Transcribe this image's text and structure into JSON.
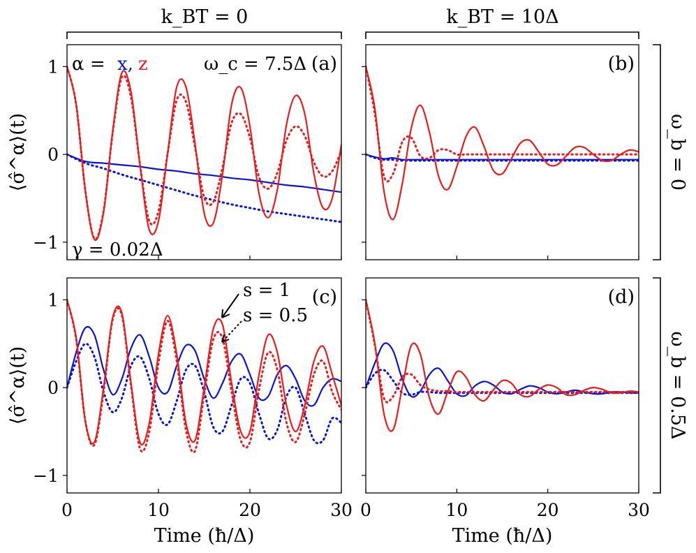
{
  "column_titles": [
    "k_BT = 0",
    "k_BT = 10Δ"
  ],
  "row_titles": [
    "ω_b = 0",
    "ω_b = 0.5Δ"
  ],
  "annotations": {
    "alpha_prefix": "α =",
    "alpha_x": "x,",
    "alpha_z": "z",
    "omega_c": "ω_c = 7.5Δ",
    "gamma": "γ = 0.02Δ",
    "s1": "s = 1",
    "s05": "s = 0.5"
  },
  "colors": {
    "x": "#0a14d8",
    "z": "#e81c1c"
  },
  "chart_data": [
    {
      "type": "line",
      "panel": "(a)",
      "ylabel": "⟨σ̂^α⟩(t)",
      "xlim": [
        0,
        30
      ],
      "ylim": [
        -1.2,
        1.25
      ],
      "xticks": [
        0,
        10,
        20,
        30
      ],
      "yticks": [
        -1,
        0,
        1
      ],
      "series": [
        {
          "component": "z",
          "style": "solid",
          "x": [
            0,
            1,
            2,
            3,
            4,
            5,
            6,
            7,
            8,
            9,
            10,
            11,
            12,
            13,
            14,
            15,
            16,
            17,
            18,
            19,
            20,
            21,
            22,
            23,
            24,
            25,
            26,
            27,
            28,
            29,
            30
          ],
          "values": [
            1.0,
            0.57,
            -0.41,
            -0.97,
            -0.66,
            0.27,
            0.93,
            0.71,
            -0.14,
            -0.86,
            -0.76,
            0.01,
            0.77,
            0.77,
            0.12,
            -0.67,
            -0.78,
            -0.23,
            0.57,
            0.76,
            0.32,
            -0.45,
            -0.72,
            -0.4,
            0.34,
            0.67,
            0.46,
            -0.22,
            -0.61,
            -0.5,
            0.11
          ]
        },
        {
          "component": "z",
          "style": "dotted",
          "x": [
            0,
            1,
            2,
            3,
            4,
            5,
            6,
            7,
            8,
            9,
            10,
            11,
            12,
            13,
            14,
            15,
            16,
            17,
            18,
            19,
            20,
            21,
            22,
            23,
            24,
            25,
            26,
            27,
            28,
            29,
            30
          ],
          "values": [
            1.0,
            0.57,
            -0.41,
            -0.96,
            -0.64,
            0.25,
            0.88,
            0.65,
            -0.13,
            -0.76,
            -0.65,
            0.01,
            0.62,
            0.6,
            0.08,
            -0.49,
            -0.54,
            -0.15,
            0.36,
            0.46,
            0.19,
            -0.26,
            -0.39,
            -0.21,
            0.16,
            0.32,
            0.21,
            -0.09,
            -0.25,
            -0.19,
            0.04
          ]
        },
        {
          "component": "x",
          "style": "solid",
          "x": [
            0,
            2,
            4,
            6,
            8,
            10,
            12,
            14,
            16,
            18,
            20,
            22,
            24,
            26,
            28,
            30
          ],
          "values": [
            0.0,
            -0.08,
            -0.1,
            -0.12,
            -0.14,
            -0.17,
            -0.19,
            -0.22,
            -0.24,
            -0.27,
            -0.29,
            -0.32,
            -0.35,
            -0.37,
            -0.4,
            -0.43
          ]
        },
        {
          "component": "x",
          "style": "dotted",
          "x": [
            0,
            2,
            4,
            6,
            8,
            10,
            12,
            14,
            16,
            18,
            20,
            22,
            24,
            26,
            28,
            30
          ],
          "values": [
            0.0,
            -0.1,
            -0.16,
            -0.23,
            -0.29,
            -0.35,
            -0.41,
            -0.47,
            -0.52,
            -0.57,
            -0.61,
            -0.65,
            -0.68,
            -0.71,
            -0.74,
            -0.77
          ]
        }
      ]
    },
    {
      "type": "line",
      "panel": "(b)",
      "xlim": [
        0,
        30
      ],
      "ylim": [
        -1.2,
        1.25
      ],
      "xticks": [
        0,
        10,
        20,
        30
      ],
      "yticks": [
        -1,
        0,
        1
      ],
      "series": [
        {
          "component": "z",
          "style": "solid",
          "x": [
            0,
            1,
            2,
            3,
            4,
            5,
            6,
            7,
            8,
            9,
            10,
            11,
            12,
            13,
            14,
            15,
            16,
            17,
            18,
            19,
            20,
            21,
            22,
            23,
            24,
            25,
            26,
            27,
            28,
            29,
            30
          ],
          "values": [
            1.0,
            0.52,
            -0.42,
            -0.74,
            -0.34,
            0.3,
            0.56,
            0.25,
            -0.25,
            -0.4,
            -0.14,
            0.2,
            0.31,
            0.09,
            -0.18,
            -0.22,
            -0.05,
            0.13,
            0.16,
            0.03,
            -0.11,
            -0.12,
            -0.02,
            0.08,
            0.08,
            0.0,
            -0.07,
            -0.07,
            0.0,
            0.05,
            0.03
          ]
        },
        {
          "component": "z",
          "style": "dotted",
          "x": [
            0,
            1,
            2,
            3,
            4,
            5,
            6,
            7,
            8,
            9,
            10,
            11,
            12,
            13,
            14,
            15,
            16,
            17,
            18,
            19,
            20,
            21,
            22,
            23,
            24,
            25,
            26,
            27,
            28,
            29,
            30
          ],
          "values": [
            1.0,
            0.46,
            -0.25,
            -0.22,
            0.14,
            0.19,
            -0.02,
            -0.04,
            0.05,
            0.05,
            0.0,
            0.0,
            0.0,
            0.0,
            0.0,
            0.0,
            0.0,
            0.0,
            0.0,
            0.0,
            0.0,
            0.0,
            0.0,
            0.0,
            0.0,
            0.0,
            0.0,
            0.0,
            0.0,
            0.0,
            0.0
          ]
        },
        {
          "component": "x",
          "style": "solid",
          "x": [
            0,
            1,
            2,
            3,
            4,
            5,
            6,
            8,
            10,
            15,
            20,
            25,
            30
          ],
          "values": [
            0.0,
            -0.03,
            -0.05,
            -0.04,
            -0.06,
            -0.06,
            -0.06,
            -0.06,
            -0.06,
            -0.06,
            -0.06,
            -0.06,
            -0.06
          ]
        },
        {
          "component": "x",
          "style": "dotted",
          "x": [
            0,
            1,
            2,
            3,
            4,
            5,
            6,
            8,
            10,
            15,
            20,
            25,
            30
          ],
          "values": [
            0.0,
            -0.04,
            -0.06,
            -0.06,
            -0.07,
            -0.07,
            -0.07,
            -0.07,
            -0.07,
            -0.07,
            -0.07,
            -0.07,
            -0.07
          ]
        }
      ]
    },
    {
      "type": "line",
      "panel": "(c)",
      "ylabel": "⟨σ̂^α⟩(t)",
      "xlabel": "Time (ħ/Δ)",
      "xlim": [
        0,
        30
      ],
      "ylim": [
        -1.2,
        1.25
      ],
      "xticks": [
        0,
        10,
        20,
        30
      ],
      "yticks": [
        -1,
        0,
        1
      ],
      "series": [
        {
          "component": "z",
          "style": "solid",
          "x": [
            0,
            1,
            2,
            3,
            4,
            5,
            6,
            7,
            8,
            9,
            10,
            11,
            12,
            13,
            14,
            15,
            16,
            17,
            18,
            19,
            20,
            21,
            22,
            23,
            24,
            25,
            26,
            27,
            28,
            29,
            30
          ],
          "values": [
            1.0,
            0.57,
            -0.38,
            -0.62,
            0.0,
            0.8,
            0.85,
            0.05,
            -0.63,
            -0.4,
            0.38,
            0.82,
            0.38,
            -0.4,
            -0.6,
            0.0,
            0.67,
            0.72,
            0.05,
            -0.5,
            -0.5,
            0.15,
            0.6,
            0.4,
            -0.2,
            -0.5,
            -0.2,
            0.3,
            0.47,
            0.15,
            -0.2
          ]
        },
        {
          "component": "z",
          "style": "dotted",
          "x": [
            0,
            1,
            2,
            3,
            4,
            5,
            6,
            7,
            8,
            9,
            10,
            11,
            12,
            13,
            14,
            15,
            16,
            17,
            18,
            19,
            20,
            21,
            22,
            23,
            24,
            25,
            26,
            27,
            28,
            29,
            30
          ],
          "values": [
            1.0,
            0.55,
            -0.38,
            -0.65,
            -0.05,
            0.78,
            0.82,
            0.02,
            -0.7,
            -0.5,
            0.28,
            0.76,
            0.3,
            -0.48,
            -0.72,
            -0.08,
            0.55,
            0.56,
            -0.05,
            -0.6,
            -0.62,
            -0.02,
            0.4,
            0.2,
            -0.4,
            -0.62,
            -0.3,
            0.15,
            0.3,
            -0.05,
            -0.25
          ]
        },
        {
          "component": "x",
          "style": "solid",
          "x": [
            0,
            1,
            2,
            3,
            4,
            5,
            6,
            7,
            8,
            9,
            10,
            11,
            12,
            13,
            14,
            15,
            16,
            17,
            18,
            19,
            20,
            21,
            22,
            23,
            24,
            25,
            26,
            27,
            28,
            29,
            30
          ],
          "values": [
            0.0,
            0.4,
            0.68,
            0.6,
            0.2,
            -0.08,
            0.1,
            0.45,
            0.6,
            0.35,
            0.0,
            -0.05,
            0.25,
            0.48,
            0.42,
            0.1,
            -0.12,
            0.05,
            0.3,
            0.38,
            0.15,
            -0.12,
            -0.1,
            0.15,
            0.25,
            0.1,
            -0.15,
            -0.2,
            0.0,
            0.1,
            0.07
          ]
        },
        {
          "component": "x",
          "style": "dotted",
          "x": [
            0,
            1,
            2,
            3,
            4,
            5,
            6,
            7,
            8,
            9,
            10,
            11,
            12,
            13,
            14,
            15,
            16,
            17,
            18,
            19,
            20,
            21,
            22,
            23,
            24,
            25,
            26,
            27,
            28,
            29,
            30
          ],
          "values": [
            0.0,
            0.3,
            0.5,
            0.35,
            -0.05,
            -0.28,
            -0.12,
            0.25,
            0.35,
            0.1,
            -0.3,
            -0.42,
            -0.15,
            0.2,
            0.25,
            -0.05,
            -0.45,
            -0.5,
            -0.2,
            0.1,
            0.05,
            -0.3,
            -0.58,
            -0.48,
            -0.1,
            0.0,
            -0.3,
            -0.6,
            -0.6,
            -0.35,
            -0.4
          ]
        }
      ]
    },
    {
      "type": "line",
      "panel": "(d)",
      "xlabel": "Time (ħ/Δ)",
      "xlim": [
        0,
        30
      ],
      "ylim": [
        -1.2,
        1.25
      ],
      "xticks": [
        0,
        10,
        20,
        30
      ],
      "yticks": [
        -1,
        0,
        1
      ],
      "series": [
        {
          "component": "z",
          "style": "solid",
          "x": [
            0,
            1,
            2,
            3,
            4,
            5,
            6,
            7,
            8,
            9,
            10,
            11,
            12,
            13,
            14,
            15,
            16,
            17,
            18,
            19,
            20,
            21,
            22,
            23,
            24,
            25,
            26,
            27,
            28,
            29,
            30
          ],
          "values": [
            1.0,
            0.5,
            -0.3,
            -0.48,
            0.0,
            0.48,
            0.38,
            -0.12,
            -0.3,
            -0.05,
            0.18,
            0.12,
            -0.08,
            -0.15,
            -0.03,
            0.08,
            0.05,
            -0.08,
            -0.1,
            -0.02,
            0.03,
            0.0,
            -0.08,
            -0.08,
            -0.03,
            0.0,
            -0.02,
            -0.06,
            -0.06,
            -0.04,
            -0.05
          ]
        },
        {
          "component": "z",
          "style": "dotted",
          "x": [
            0,
            1,
            2,
            3,
            4,
            5,
            6,
            7,
            8,
            9,
            10,
            12,
            14,
            16,
            18,
            20,
            22,
            24,
            26,
            28,
            30
          ],
          "values": [
            1.0,
            0.48,
            -0.12,
            -0.1,
            0.12,
            0.15,
            0.03,
            -0.02,
            -0.04,
            -0.04,
            -0.05,
            -0.05,
            -0.05,
            -0.05,
            -0.05,
            -0.05,
            -0.05,
            -0.05,
            -0.05,
            -0.05,
            -0.05
          ]
        },
        {
          "component": "x",
          "style": "solid",
          "x": [
            0,
            1,
            2,
            3,
            4,
            5,
            6,
            7,
            8,
            9,
            10,
            11,
            12,
            13,
            14,
            15,
            16,
            17,
            18,
            19,
            20,
            21,
            22,
            23,
            24,
            25,
            26,
            27,
            28,
            29,
            30
          ],
          "values": [
            0.0,
            0.28,
            0.5,
            0.42,
            0.1,
            -0.1,
            -0.04,
            0.15,
            0.22,
            0.08,
            -0.07,
            -0.09,
            0.02,
            0.07,
            0.03,
            -0.05,
            -0.07,
            -0.02,
            0.02,
            0.0,
            -0.05,
            -0.07,
            -0.05,
            -0.03,
            -0.05,
            -0.07,
            -0.07,
            -0.05,
            -0.05,
            -0.06,
            -0.06
          ]
        },
        {
          "component": "x",
          "style": "dotted",
          "x": [
            0,
            1,
            2,
            3,
            4,
            5,
            6,
            7,
            8,
            10,
            12,
            15,
            20,
            25,
            30
          ],
          "values": [
            0.0,
            0.16,
            0.2,
            0.08,
            -0.06,
            -0.08,
            -0.05,
            -0.05,
            -0.06,
            -0.06,
            -0.06,
            -0.06,
            -0.06,
            -0.06,
            -0.06
          ]
        }
      ]
    }
  ]
}
